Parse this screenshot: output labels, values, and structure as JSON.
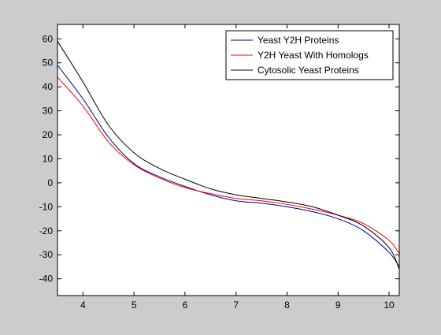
{
  "chart_data": {
    "type": "line",
    "title": "",
    "xlabel": "",
    "ylabel": "",
    "xlim": [
      3.5,
      10.2
    ],
    "ylim": [
      -47,
      66
    ],
    "xticks": [
      4,
      5,
      6,
      7,
      8,
      9,
      10
    ],
    "yticks": [
      60,
      50,
      40,
      30,
      20,
      10,
      0,
      -10,
      -20,
      -30,
      -40
    ],
    "grid": false,
    "legend_position": "top-right",
    "series": [
      {
        "name": "Yeast Y2H Proteins",
        "color": "#00008b",
        "x": [
          3.5,
          4.0,
          4.5,
          5.0,
          5.5,
          6.0,
          6.5,
          7.0,
          7.5,
          8.0,
          8.5,
          9.0,
          9.5,
          10.0,
          10.2
        ],
        "y": [
          49,
          35,
          19,
          8,
          2.5,
          -1.5,
          -5,
          -7.5,
          -8.5,
          -10,
          -12,
          -15,
          -20,
          -29,
          -35
        ]
      },
      {
        "name": "Y2H Yeast With Homologs",
        "color": "#ff0000",
        "x": [
          3.5,
          4.0,
          4.5,
          5.0,
          5.5,
          6.0,
          6.5,
          7.0,
          7.5,
          8.0,
          8.5,
          9.0,
          9.5,
          10.0,
          10.2
        ],
        "y": [
          44,
          32,
          17,
          7.5,
          2,
          -2,
          -4.5,
          -6.5,
          -7.5,
          -9,
          -11,
          -13.5,
          -17,
          -24,
          -29.5
        ]
      },
      {
        "name": "Cytosolic Yeast Proteins",
        "color": "#000000",
        "x": [
          3.5,
          4.0,
          4.5,
          5.0,
          5.5,
          6.0,
          6.5,
          7.0,
          7.5,
          8.0,
          8.5,
          9.0,
          9.5,
          10.0,
          10.2
        ],
        "y": [
          59,
          42,
          24,
          12.5,
          6,
          1.5,
          -2.5,
          -5,
          -6.5,
          -8,
          -10,
          -13.5,
          -18,
          -27,
          -36
        ]
      }
    ]
  }
}
